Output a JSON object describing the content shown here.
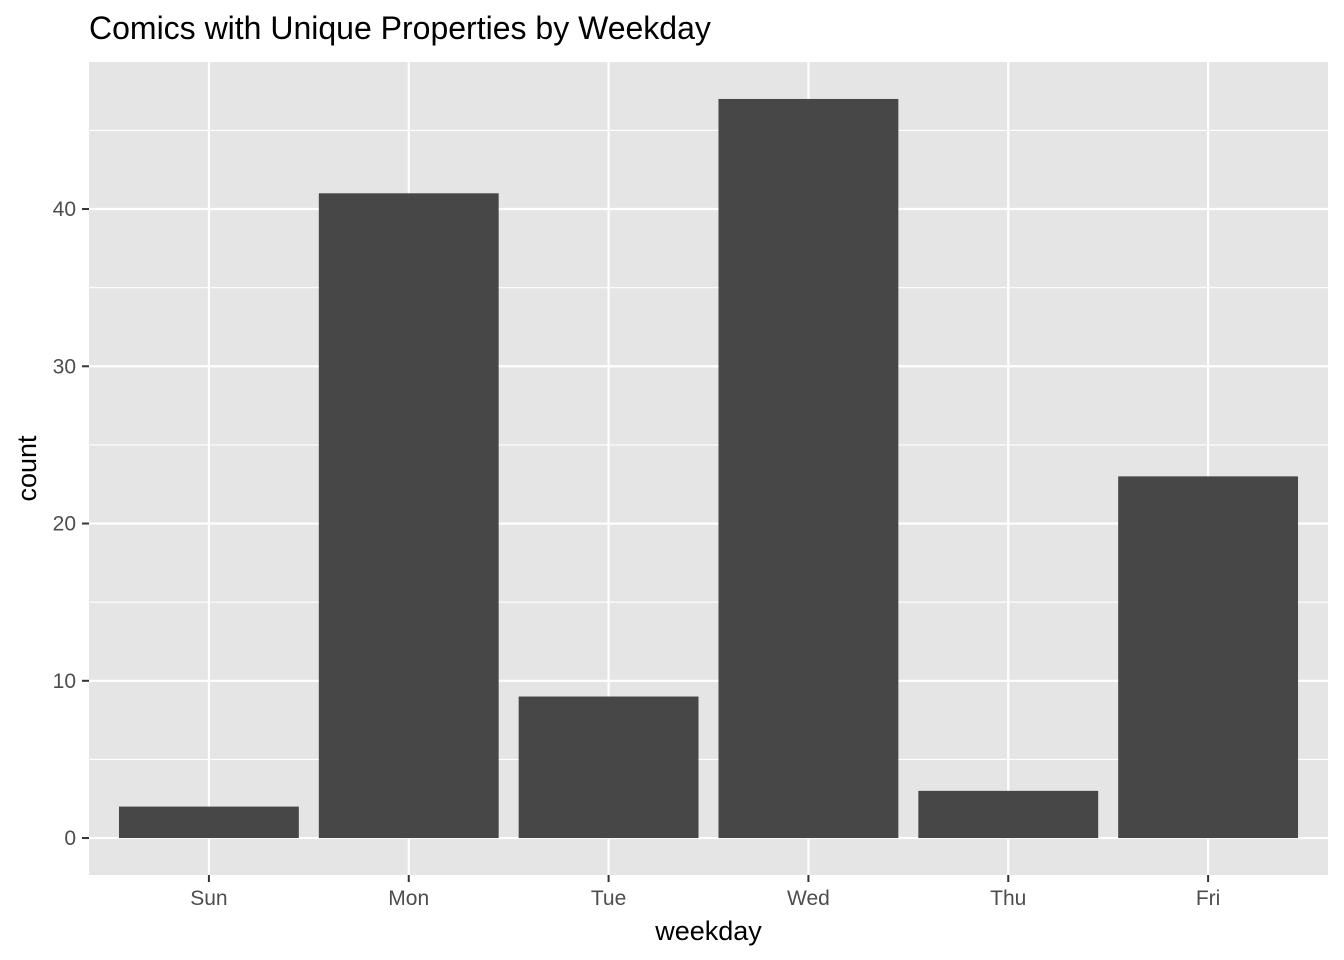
{
  "chart_data": {
    "type": "bar",
    "title": "Comics with Unique Properties by Weekday",
    "xlabel": "weekday",
    "ylabel": "count",
    "categories": [
      "Sun",
      "Mon",
      "Tue",
      "Wed",
      "Thu",
      "Fri"
    ],
    "values": [
      2,
      41,
      9,
      47,
      3,
      23
    ],
    "ylim": [
      -2.35,
      49.35
    ],
    "yticks": [
      0,
      10,
      20,
      30,
      40
    ],
    "grid": true,
    "legend": "none",
    "colors": {
      "panel": "#e5e5e5",
      "grid": "#ffffff",
      "bar": "#474747",
      "tick_text": "#4d4d4d",
      "tick_mark": "#333333"
    }
  }
}
